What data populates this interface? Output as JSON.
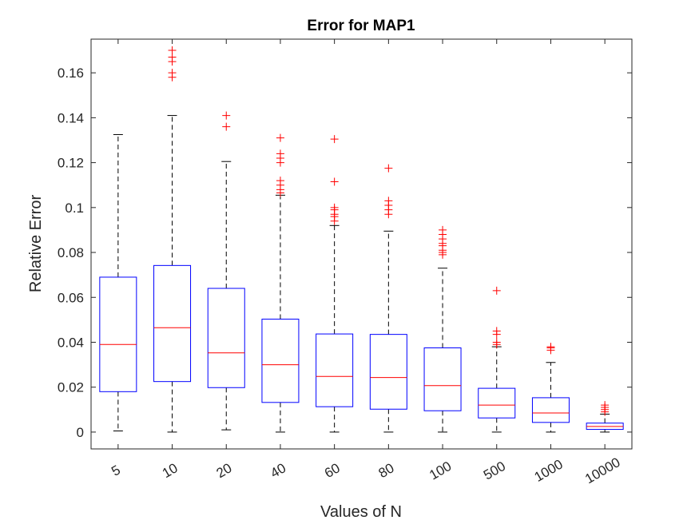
{
  "chart_data": {
    "type": "boxplot",
    "title": "Error for MAP1",
    "xlabel": "Values of N",
    "ylabel": "Relative Error",
    "ylim": [
      -0.0075,
      0.175
    ],
    "yticks": [
      0,
      0.02,
      0.04,
      0.06,
      0.08,
      0.1,
      0.12,
      0.14,
      0.16
    ],
    "ytick_labels": [
      "0",
      "0.02",
      "0.04",
      "0.06",
      "0.08",
      "0.1",
      "0.12",
      "0.14",
      "0.16"
    ],
    "categories": [
      "5",
      "10",
      "20",
      "40",
      "60",
      "80",
      "100",
      "500",
      "1000",
      "10000"
    ],
    "grid": false,
    "box_color": "#0000ff",
    "median_color": "#ff0000",
    "outlier_color": "#ff0000",
    "whisker_color": "#000000",
    "boxes": [
      {
        "whisker_low": 0.0005,
        "q1": 0.018,
        "median": 0.039,
        "q3": 0.069,
        "whisker_high": 0.1325,
        "outliers": []
      },
      {
        "whisker_low": 0.0,
        "q1": 0.0225,
        "median": 0.0465,
        "q3": 0.0742,
        "whisker_high": 0.141,
        "outliers": [
          0.158,
          0.16,
          0.165,
          0.167,
          0.17
        ]
      },
      {
        "whisker_low": 0.001,
        "q1": 0.0198,
        "median": 0.0353,
        "q3": 0.064,
        "whisker_high": 0.1205,
        "outliers": [
          0.136,
          0.141
        ]
      },
      {
        "whisker_low": 0.0,
        "q1": 0.0132,
        "median": 0.03,
        "q3": 0.0503,
        "whisker_high": 0.1055,
        "outliers": [
          0.1065,
          0.108,
          0.11,
          0.112,
          0.12,
          0.122,
          0.124,
          0.131
        ]
      },
      {
        "whisker_low": 0.0,
        "q1": 0.0113,
        "median": 0.0248,
        "q3": 0.0437,
        "whisker_high": 0.092,
        "outliers": [
          0.094,
          0.096,
          0.097,
          0.099,
          0.1,
          0.1115,
          0.1305
        ]
      },
      {
        "whisker_low": 0.0,
        "q1": 0.0102,
        "median": 0.0243,
        "q3": 0.0435,
        "whisker_high": 0.0895,
        "outliers": [
          0.097,
          0.099,
          0.101,
          0.103,
          0.1175
        ]
      },
      {
        "whisker_low": 0.0,
        "q1": 0.0095,
        "median": 0.0207,
        "q3": 0.0375,
        "whisker_high": 0.073,
        "outliers": [
          0.079,
          0.08,
          0.081,
          0.083,
          0.084,
          0.086,
          0.088,
          0.09
        ]
      },
      {
        "whisker_low": 0.0,
        "q1": 0.0063,
        "median": 0.012,
        "q3": 0.0195,
        "whisker_high": 0.038,
        "outliers": [
          0.039,
          0.04,
          0.0435,
          0.045,
          0.063
        ]
      },
      {
        "whisker_low": 0.0,
        "q1": 0.0043,
        "median": 0.0085,
        "q3": 0.0153,
        "whisker_high": 0.031,
        "outliers": [
          0.0365,
          0.0375,
          0.038
        ]
      },
      {
        "whisker_low": 0.0,
        "q1": 0.0012,
        "median": 0.0025,
        "q3": 0.004,
        "whisker_high": 0.008,
        "outliers": [
          0.009,
          0.01,
          0.011,
          0.012
        ]
      }
    ]
  }
}
